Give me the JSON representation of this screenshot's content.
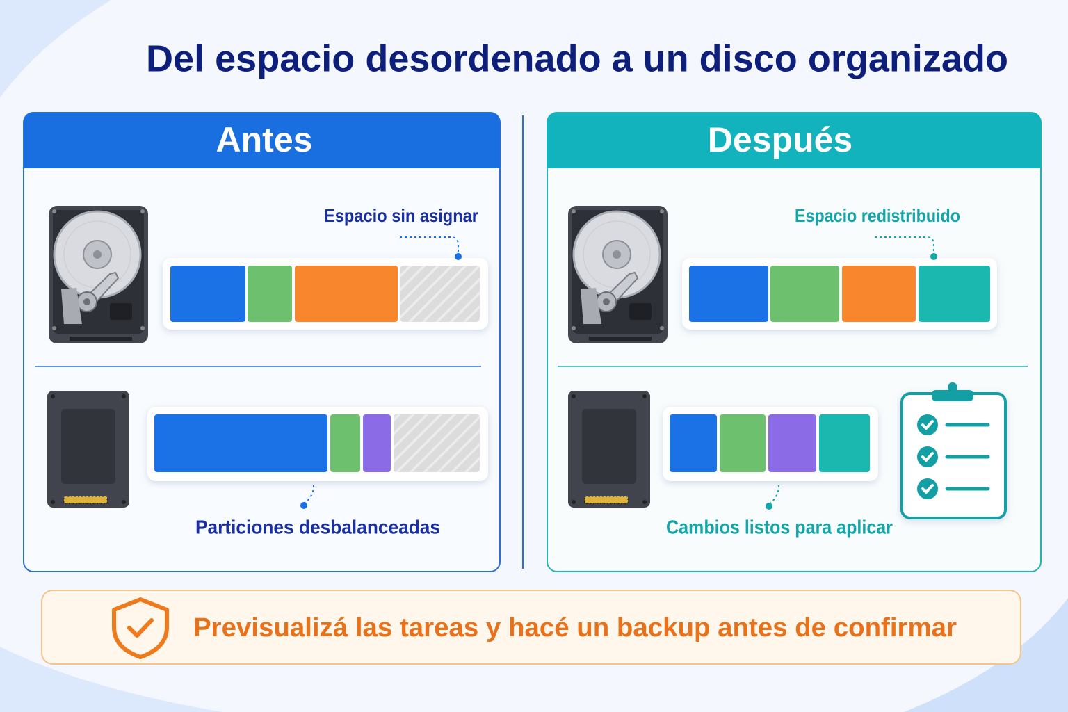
{
  "title": "Del espacio desordenado a un disco organizado",
  "before": {
    "header": "Antes",
    "hdd_label": "Espacio sin asignar",
    "ssd_label": "Particiones desbalanceadas"
  },
  "after": {
    "header": "Después",
    "hdd_label": "Espacio redistribuido",
    "ssd_label": "Cambios listos para aplicar"
  },
  "footer": "Previsualizá las tareas y hacé un backup antes de confirmar"
}
